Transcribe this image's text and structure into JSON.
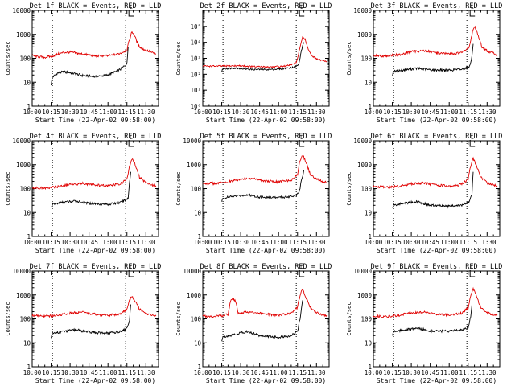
{
  "colors": {
    "events": "#000000",
    "lld": "#e00000",
    "axis": "#000000"
  },
  "chart_data": [
    {
      "type": "line",
      "title": "Det 1f BLACK = Events, RED = LLD",
      "xlabel": "Start Time (22-Apr-02 09:58:00)",
      "ylabel": "Counts/sec",
      "ylog": true,
      "ylim": [
        1,
        10000
      ],
      "yticks": [
        "1",
        "10",
        "100",
        "1000",
        "10000"
      ],
      "xlim": [
        "10:00",
        "11:40"
      ],
      "xticks": [
        "10:00",
        "10:15",
        "10:30",
        "10:45",
        "11:00",
        "11:15",
        "11:30"
      ],
      "vlines": [
        "10:16",
        "11:14"
      ],
      "flag_label": "L",
      "series": [
        {
          "name": "BLACK = Events",
          "color": "#000000",
          "x": [
            "10:15",
            "10:16",
            "10:20",
            "10:25",
            "10:30",
            "10:40",
            "10:50",
            "11:00",
            "11:05",
            "11:10",
            "11:15",
            "11:16"
          ],
          "y": [
            8,
            16,
            24,
            27,
            25,
            19,
            17,
            20,
            26,
            35,
            60,
            300
          ]
        },
        {
          "name": "RED = LLD",
          "color": "#e00000",
          "x": [
            "10:00",
            "10:05",
            "10:10",
            "10:15",
            "10:20",
            "10:25",
            "10:30",
            "10:40",
            "10:50",
            "11:00",
            "11:05",
            "11:10",
            "11:15",
            "11:17",
            "11:19",
            "11:21",
            "11:24",
            "11:27",
            "11:30",
            "11:35",
            "11:38"
          ],
          "y": [
            130,
            115,
            110,
            120,
            145,
            175,
            180,
            150,
            125,
            125,
            140,
            165,
            220,
            600,
            1300,
            900,
            350,
            250,
            220,
            170,
            150
          ]
        }
      ]
    },
    {
      "type": "line",
      "title": "Det 2f BLACK = Events, RED = LLD",
      "xlabel": "Start Time (22-Apr-02 09:58:00)",
      "ylabel": "Counts/sec",
      "ylog": true,
      "ylim": [
        1,
        1000000
      ],
      "yticks": [
        "10⁰",
        "10¹",
        "10²",
        "10³",
        "10⁴",
        "10⁵"
      ],
      "xlim": [
        "10:00",
        "11:40"
      ],
      "xticks": [
        "10:00",
        "10:15",
        "10:30",
        "10:45",
        "11:00",
        "11:15",
        "11:30"
      ],
      "vlines": [
        "10:16",
        "11:14"
      ],
      "flag_label": "L",
      "series": [
        {
          "name": "BLACK = Events",
          "color": "#000000",
          "x": [
            "10:15",
            "10:16",
            "10:25",
            "10:40",
            "10:55",
            "11:05",
            "11:12",
            "11:16",
            "11:18",
            "11:20"
          ],
          "y": [
            150,
            220,
            250,
            200,
            200,
            230,
            280,
            400,
            3000,
            10000
          ]
        },
        {
          "name": "RED = LLD",
          "color": "#e00000",
          "x": [
            "10:00",
            "10:10",
            "10:20",
            "10:30",
            "10:40",
            "10:50",
            "11:00",
            "11:08",
            "11:14",
            "11:17",
            "11:19",
            "11:21",
            "11:24",
            "11:27",
            "11:30",
            "11:35",
            "11:38"
          ],
          "y": [
            330,
            320,
            330,
            340,
            300,
            290,
            300,
            350,
            500,
            5000,
            20000,
            15000,
            3000,
            1300,
            900,
            700,
            650
          ]
        }
      ]
    },
    {
      "type": "line",
      "title": "Det 3f BLACK = Events, RED = LLD",
      "xlabel": "Start Time (22-Apr-02 09:58:00)",
      "ylabel": "Counts/sec",
      "ylog": true,
      "ylim": [
        1,
        10000
      ],
      "yticks": [
        "1",
        "10",
        "100",
        "1000",
        "10000"
      ],
      "xlim": [
        "10:00",
        "11:40"
      ],
      "xticks": [
        "10:00",
        "10:15",
        "10:30",
        "10:45",
        "11:00",
        "11:15",
        "11:30"
      ],
      "vlines": [
        "10:16",
        "11:14"
      ],
      "flag_label": "L",
      "series": [
        {
          "name": "BLACK = Events",
          "color": "#000000",
          "x": [
            "10:15",
            "10:16",
            "10:25",
            "10:35",
            "10:45",
            "11:00",
            "11:10",
            "11:16",
            "11:18",
            "11:19"
          ],
          "y": [
            20,
            28,
            33,
            38,
            33,
            32,
            35,
            45,
            120,
            400
          ]
        },
        {
          "name": "RED = LLD",
          "color": "#e00000",
          "x": [
            "10:00",
            "10:10",
            "10:20",
            "10:30",
            "10:40",
            "10:50",
            "11:00",
            "11:10",
            "11:16",
            "11:18",
            "11:20",
            "11:23",
            "11:26",
            "11:30",
            "11:35",
            "11:38"
          ],
          "y": [
            130,
            125,
            140,
            190,
            210,
            170,
            150,
            170,
            300,
            1000,
            2200,
            900,
            300,
            200,
            160,
            140
          ]
        }
      ]
    },
    {
      "type": "line",
      "title": "Det 4f BLACK = Events, RED = LLD",
      "xlabel": "Start Time (22-Apr-02 09:58:00)",
      "ylabel": "Counts/sec",
      "ylog": true,
      "ylim": [
        1,
        10000
      ],
      "yticks": [
        "1",
        "10",
        "100",
        "1000",
        "10000"
      ],
      "xlim": [
        "10:00",
        "11:40"
      ],
      "xticks": [
        "10:00",
        "10:15",
        "10:30",
        "10:45",
        "11:00",
        "11:15",
        "11:30"
      ],
      "vlines": [
        "10:16",
        "11:14"
      ],
      "flag_label": "L",
      "series": [
        {
          "name": "BLACK = Events",
          "color": "#000000",
          "x": [
            "10:15",
            "10:16",
            "10:25",
            "10:35",
            "10:45",
            "11:00",
            "11:10",
            "11:16",
            "11:17",
            "11:18"
          ],
          "y": [
            17,
            22,
            27,
            30,
            24,
            22,
            26,
            40,
            180,
            500
          ]
        },
        {
          "name": "RED = LLD",
          "color": "#e00000",
          "x": [
            "10:00",
            "10:10",
            "10:20",
            "10:30",
            "10:40",
            "10:50",
            "11:00",
            "11:10",
            "11:15",
            "11:17",
            "11:19",
            "11:22",
            "11:25",
            "11:30",
            "11:35",
            "11:38"
          ],
          "y": [
            110,
            105,
            120,
            150,
            165,
            140,
            130,
            160,
            250,
            800,
            1800,
            900,
            300,
            180,
            140,
            130
          ]
        }
      ]
    },
    {
      "type": "line",
      "title": "Det 5f BLACK = Events, RED = LLD",
      "xlabel": "Start Time (22-Apr-02 09:58:00)",
      "ylabel": "Counts/sec",
      "ylog": true,
      "ylim": [
        1,
        10000
      ],
      "yticks": [
        "1",
        "10",
        "100",
        "1000",
        "10000"
      ],
      "xlim": [
        "10:00",
        "11:40"
      ],
      "xticks": [
        "10:00",
        "10:15",
        "10:30",
        "10:45",
        "11:00",
        "11:15",
        "11:30"
      ],
      "vlines": [
        "10:16",
        "11:14"
      ],
      "flag_label": "L",
      "series": [
        {
          "name": "BLACK = Events",
          "color": "#000000",
          "x": [
            "10:15",
            "10:16",
            "10:25",
            "10:35",
            "10:45",
            "11:00",
            "11:10",
            "11:16",
            "11:18",
            "11:20"
          ],
          "y": [
            28,
            40,
            48,
            55,
            45,
            42,
            48,
            60,
            200,
            600
          ]
        },
        {
          "name": "RED = LLD",
          "color": "#e00000",
          "x": [
            "10:00",
            "10:10",
            "10:20",
            "10:30",
            "10:40",
            "10:50",
            "11:00",
            "11:10",
            "11:15",
            "11:17",
            "11:19",
            "11:22",
            "11:25",
            "11:30",
            "11:35",
            "11:38"
          ],
          "y": [
            170,
            165,
            190,
            250,
            260,
            210,
            190,
            230,
            400,
            1500,
            2600,
            1200,
            400,
            250,
            200,
            180
          ]
        }
      ]
    },
    {
      "type": "line",
      "title": "Det 6f BLACK = Events, RED = LLD",
      "xlabel": "Start Time (22-Apr-02 09:58:00)",
      "ylabel": "Counts/sec",
      "ylog": true,
      "ylim": [
        1,
        10000
      ],
      "yticks": [
        "1",
        "10",
        "100",
        "1000",
        "10000"
      ],
      "xlim": [
        "10:00",
        "11:40"
      ],
      "xticks": [
        "10:00",
        "10:15",
        "10:30",
        "10:45",
        "11:00",
        "11:15",
        "11:30"
      ],
      "vlines": [
        "10:16",
        "11:14"
      ],
      "flag_label": "L",
      "series": [
        {
          "name": "BLACK = Events",
          "color": "#000000",
          "x": [
            "10:15",
            "10:16",
            "10:25",
            "10:35",
            "10:45",
            "11:00",
            "11:10",
            "11:16",
            "11:18",
            "11:19"
          ],
          "y": [
            15,
            20,
            25,
            28,
            20,
            18,
            20,
            28,
            60,
            500
          ]
        },
        {
          "name": "RED = LLD",
          "color": "#e00000",
          "x": [
            "10:00",
            "10:10",
            "10:20",
            "10:30",
            "10:40",
            "10:50",
            "11:00",
            "11:10",
            "11:15",
            "11:17",
            "11:19",
            "11:22",
            "11:25",
            "11:30",
            "11:35",
            "11:38"
          ],
          "y": [
            120,
            115,
            125,
            160,
            170,
            140,
            125,
            150,
            250,
            900,
            1800,
            800,
            300,
            170,
            140,
            130
          ]
        }
      ]
    },
    {
      "type": "line",
      "title": "Det 7f BLACK = Events, RED = LLD",
      "xlabel": "Start Time (22-Apr-02 09:58:00)",
      "ylabel": "Counts/sec",
      "ylog": true,
      "ylim": [
        1,
        10000
      ],
      "yticks": [
        "1",
        "10",
        "100",
        "1000",
        "10000"
      ],
      "xlim": [
        "10:00",
        "11:40"
      ],
      "xticks": [
        "10:00",
        "10:15",
        "10:30",
        "10:45",
        "11:00",
        "11:15",
        "11:30"
      ],
      "vlines": [
        "10:16",
        "11:14"
      ],
      "flag_label": "L",
      "series": [
        {
          "name": "BLACK = Events",
          "color": "#000000",
          "x": [
            "10:15",
            "10:16",
            "10:25",
            "10:35",
            "10:45",
            "11:00",
            "11:10",
            "11:15",
            "11:17",
            "11:18"
          ],
          "y": [
            15,
            25,
            30,
            35,
            28,
            25,
            30,
            40,
            90,
            400
          ]
        },
        {
          "name": "RED = LLD",
          "color": "#e00000",
          "x": [
            "10:00",
            "10:10",
            "10:20",
            "10:30",
            "10:40",
            "10:50",
            "11:00",
            "11:10",
            "11:15",
            "11:17",
            "11:19",
            "11:22",
            "11:25",
            "11:30",
            "11:35",
            "11:38"
          ],
          "y": [
            140,
            130,
            140,
            175,
            185,
            155,
            140,
            160,
            260,
            600,
            900,
            500,
            250,
            170,
            140,
            130
          ]
        }
      ]
    },
    {
      "type": "line",
      "title": "Det 8f BLACK = Events, RED = LLD",
      "xlabel": "Start Time (22-Apr-02 09:58:00)",
      "ylabel": "Counts/sec",
      "ylog": true,
      "ylim": [
        1,
        10000
      ],
      "yticks": [
        "1",
        "10",
        "100",
        "1000",
        "10000"
      ],
      "xlim": [
        "10:00",
        "11:40"
      ],
      "xticks": [
        "10:00",
        "10:15",
        "10:30",
        "10:45",
        "11:00",
        "11:15",
        "11:30"
      ],
      "vlines": [
        "10:16",
        "11:14"
      ],
      "flag_label": "L",
      "series": [
        {
          "name": "BLACK = Events",
          "color": "#000000",
          "x": [
            "10:15",
            "10:16",
            "10:25",
            "10:35",
            "10:45",
            "11:00",
            "11:10",
            "11:15",
            "11:17",
            "11:19"
          ],
          "y": [
            12,
            18,
            22,
            30,
            20,
            17,
            20,
            30,
            100,
            600
          ]
        },
        {
          "name": "RED = LLD",
          "color": "#e00000",
          "x": [
            "10:00",
            "10:10",
            "10:20",
            "10:22",
            "10:24",
            "10:26",
            "10:28",
            "10:35",
            "10:45",
            "11:00",
            "11:10",
            "11:15",
            "11:17",
            "11:19",
            "11:22",
            "11:25",
            "11:30",
            "11:35",
            "11:38"
          ],
          "y": [
            130,
            125,
            150,
            600,
            650,
            550,
            160,
            200,
            170,
            140,
            170,
            300,
            1000,
            1800,
            700,
            300,
            180,
            150,
            140
          ]
        }
      ]
    },
    {
      "type": "line",
      "title": "Det 9f BLACK = Events, RED = LLD",
      "xlabel": "Start Time (22-Apr-02 09:58:00)",
      "ylabel": "Counts/sec",
      "ylog": true,
      "ylim": [
        1,
        10000
      ],
      "yticks": [
        "1",
        "10",
        "100",
        "1000",
        "10000"
      ],
      "xlim": [
        "10:00",
        "11:40"
      ],
      "xticks": [
        "10:00",
        "10:15",
        "10:30",
        "10:45",
        "11:00",
        "11:15",
        "11:30"
      ],
      "vlines": [
        "10:16",
        "11:14"
      ],
      "flag_label": "L",
      "series": [
        {
          "name": "BLACK = Events",
          "color": "#000000",
          "x": [
            "10:15",
            "10:16",
            "10:25",
            "10:35",
            "10:45",
            "11:00",
            "11:10",
            "11:15",
            "11:17",
            "11:18"
          ],
          "y": [
            20,
            30,
            35,
            40,
            32,
            30,
            35,
            45,
            120,
            400
          ]
        },
        {
          "name": "RED = LLD",
          "color": "#e00000",
          "x": [
            "10:00",
            "10:10",
            "10:20",
            "10:30",
            "10:40",
            "10:50",
            "11:00",
            "11:10",
            "11:15",
            "11:17",
            "11:19",
            "11:22",
            "11:25",
            "11:30",
            "11:35",
            "11:38"
          ],
          "y": [
            130,
            125,
            140,
            180,
            190,
            160,
            145,
            170,
            300,
            1000,
            1900,
            800,
            300,
            180,
            150,
            140
          ]
        }
      ]
    }
  ]
}
